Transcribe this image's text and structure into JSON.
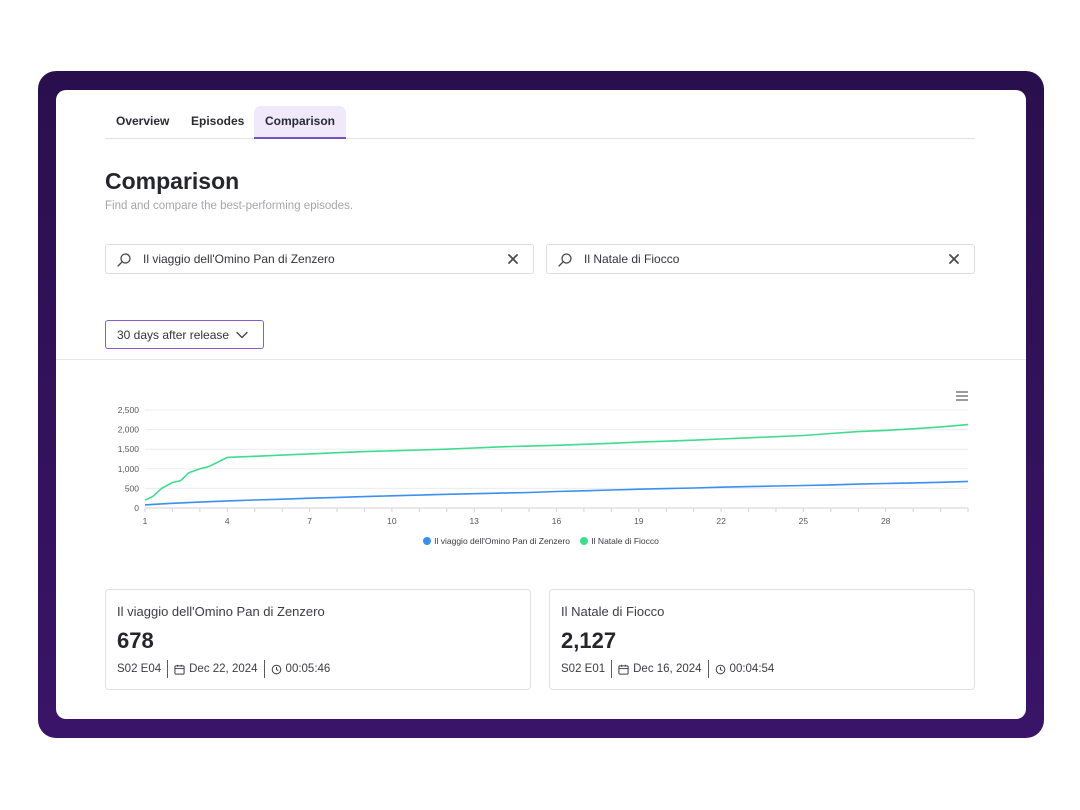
{
  "tabs": [
    {
      "label": "Overview",
      "active": false
    },
    {
      "label": "Episodes",
      "active": false
    },
    {
      "label": "Comparison",
      "active": true
    }
  ],
  "page": {
    "title": "Comparison",
    "subtitle": "Find and compare the best-performing episodes."
  },
  "search": [
    {
      "value": "Il viaggio dell'Omino Pan di Zenzero",
      "icon": "search-icon",
      "clear_icon": "close-icon"
    },
    {
      "value": "Il Natale di Fiocco",
      "icon": "search-icon",
      "clear_icon": "close-icon"
    }
  ],
  "range_select": {
    "selected": "30 days after release",
    "icon": "chevron-down-icon"
  },
  "chart_menu_icon": "hamburger-menu-icon",
  "colors": {
    "accent": "#7b4fc9",
    "frame": "#2f1157",
    "series_a": "#3b8ff0",
    "series_b": "#3fdc8e"
  },
  "chart_data": {
    "type": "line",
    "ylim": [
      0,
      2500
    ],
    "yticks": [
      "0",
      "500",
      "1,000",
      "1,500",
      "2,000",
      "2,500"
    ],
    "xlim": [
      1,
      31
    ],
    "xticks": [
      "1",
      "4",
      "7",
      "10",
      "13",
      "16",
      "19",
      "22",
      "25",
      "28"
    ],
    "grid": true,
    "legend_position": "bottom",
    "series": [
      {
        "name": "Il viaggio dell'Omino Pan di Zenzero",
        "color": "#3b8ff0",
        "x": [
          1,
          1.5,
          2,
          2.5,
          3,
          4,
          5,
          6,
          7,
          8,
          9,
          10,
          11,
          12,
          13,
          14,
          15,
          16,
          17,
          18,
          19,
          20,
          21,
          22,
          23,
          24,
          25,
          26,
          27,
          28,
          29,
          30,
          31
        ],
        "values": [
          80,
          100,
          120,
          135,
          150,
          180,
          205,
          225,
          250,
          270,
          290,
          310,
          330,
          350,
          365,
          380,
          395,
          420,
          440,
          460,
          480,
          495,
          510,
          530,
          545,
          560,
          575,
          590,
          610,
          625,
          640,
          655,
          678
        ]
      },
      {
        "name": "Il Natale di Fiocco",
        "color": "#3fdc8e",
        "x": [
          1,
          1.3,
          1.6,
          2,
          2.3,
          2.6,
          3,
          3.3,
          3.6,
          4,
          4.5,
          5,
          6,
          7,
          8,
          9,
          10,
          11,
          12,
          13,
          14,
          15,
          16,
          17,
          18,
          19,
          20,
          21,
          22,
          23,
          24,
          25,
          26,
          27,
          28,
          29,
          30,
          31
        ],
        "values": [
          200,
          300,
          500,
          650,
          700,
          900,
          1000,
          1050,
          1150,
          1290,
          1305,
          1320,
          1350,
          1380,
          1410,
          1440,
          1460,
          1480,
          1500,
          1530,
          1560,
          1580,
          1600,
          1625,
          1650,
          1680,
          1705,
          1730,
          1760,
          1790,
          1820,
          1850,
          1900,
          1950,
          1980,
          2020,
          2070,
          2127
        ]
      }
    ]
  },
  "stats": [
    {
      "title": "Il viaggio dell'Omino Pan di Zenzero",
      "value": "678",
      "episode": "S02 E04",
      "date": "Dec 22, 2024",
      "duration": "00:05:46"
    },
    {
      "title": "Il Natale di Fiocco",
      "value": "2,127",
      "episode": "S02 E01",
      "date": "Dec 16, 2024",
      "duration": "00:04:54"
    }
  ]
}
